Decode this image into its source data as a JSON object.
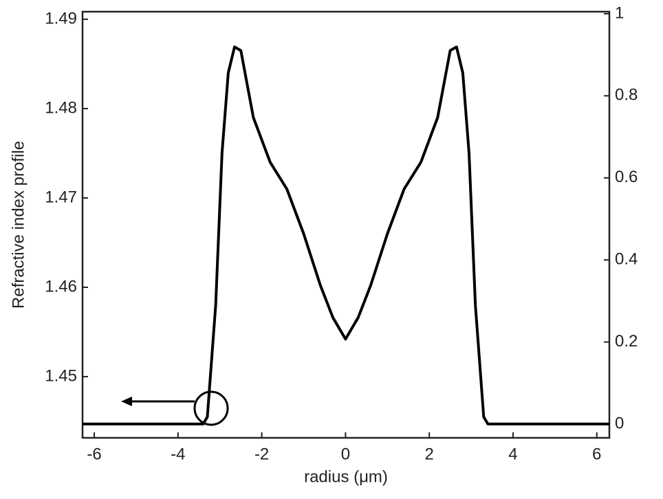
{
  "chart_data": {
    "type": "line",
    "xlabel": "radius (μm)",
    "ylabel": "Refractive index profile",
    "x": [
      -6.28,
      -3.4,
      -3.3,
      -3.1,
      -2.95,
      -2.8,
      -2.65,
      -2.5,
      -2.2,
      -1.8,
      -1.4,
      -1.0,
      -0.6,
      -0.3,
      -0.15,
      0,
      0.15,
      0.3,
      0.6,
      1.0,
      1.4,
      1.8,
      2.2,
      2.5,
      2.65,
      2.8,
      2.95,
      3.1,
      3.3,
      3.4,
      6.3
    ],
    "values": [
      1.4447,
      1.4447,
      1.4455,
      1.458,
      1.475,
      1.484,
      1.4869,
      1.4865,
      1.479,
      1.474,
      1.471,
      1.466,
      1.4602,
      1.4566,
      1.4554,
      1.4542,
      1.4554,
      1.4566,
      1.4602,
      1.466,
      1.471,
      1.474,
      1.479,
      1.4865,
      1.4869,
      1.484,
      1.475,
      1.458,
      1.4455,
      1.4447,
      1.4447
    ],
    "color": "#000000",
    "xlim": [
      -6.28,
      6.3
    ],
    "xticks": [
      -6,
      -4,
      -2,
      0,
      2,
      4,
      6
    ],
    "ylim": [
      1.44315,
      1.49085
    ],
    "yticks": [
      1.45,
      1.46,
      1.47,
      1.48,
      1.49
    ],
    "y2lim": [
      -0.0335,
      1.005
    ],
    "y2ticks": [
      0,
      0.2,
      0.4,
      0.6,
      0.8,
      1
    ],
    "grid": false
  }
}
